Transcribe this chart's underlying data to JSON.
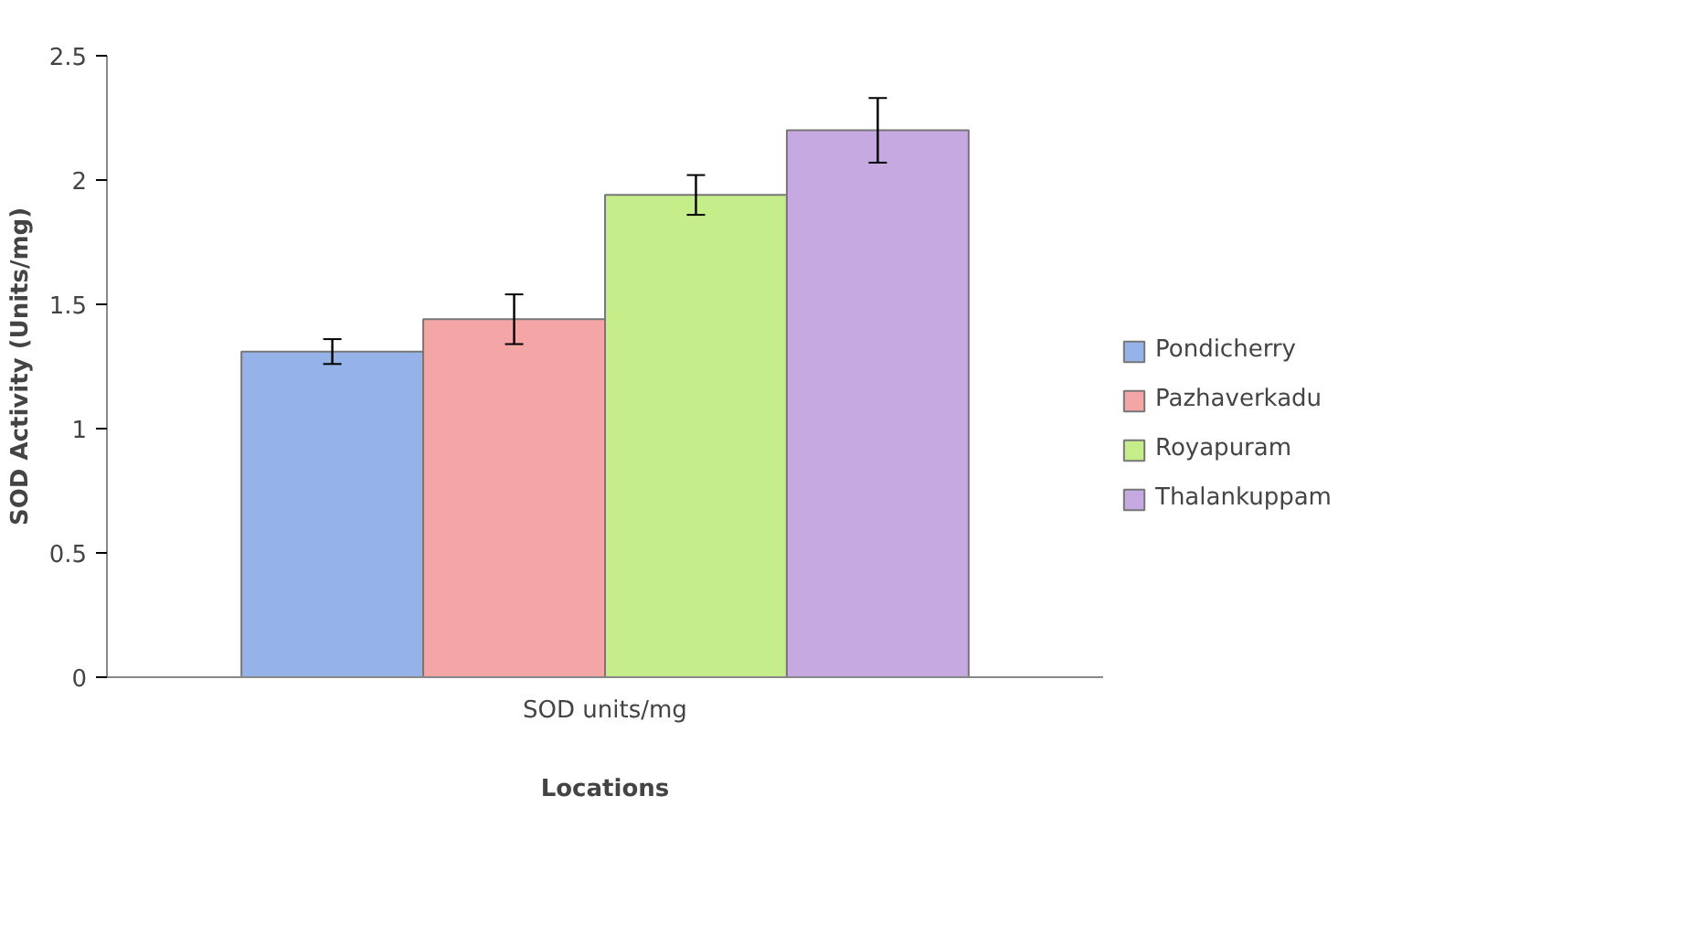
{
  "chart_data": {
    "type": "bar",
    "xlabel": "Locations",
    "ylabel": "SOD Activity (Units/mg)",
    "categories": [
      "SOD units/mg"
    ],
    "series": [
      {
        "name": "Pondicherry",
        "color": "#95b3e8",
        "values": [
          1.31
        ],
        "errors": [
          0.05
        ]
      },
      {
        "name": "Pazhaverkadu",
        "color": "#f4a6a6",
        "values": [
          1.44
        ],
        "errors": [
          0.1
        ]
      },
      {
        "name": "Royapuram",
        "color": "#c5ed8a",
        "values": [
          1.94
        ],
        "errors": [
          0.08
        ]
      },
      {
        "name": "Thalankuppam",
        "color": "#c6a9e0",
        "values": [
          2.2
        ],
        "errors": [
          0.13
        ]
      }
    ],
    "ylim": [
      0,
      2.5
    ],
    "yticks": [
      0,
      0.5,
      1,
      1.5,
      2,
      2.5
    ],
    "grid": false,
    "legend": "right"
  }
}
